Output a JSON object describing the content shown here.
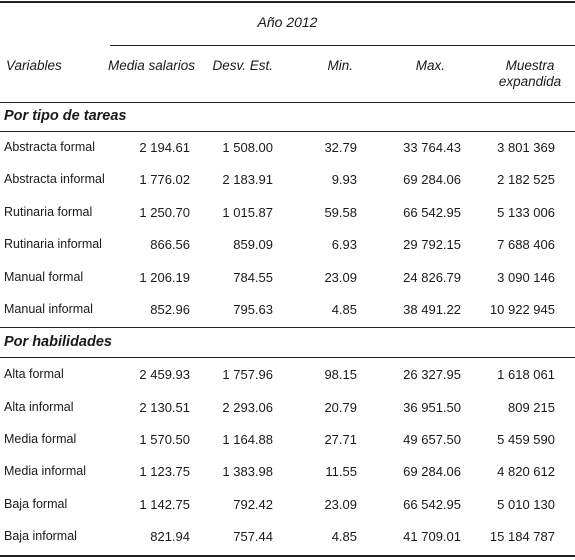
{
  "title": "Año 2012",
  "columns": {
    "variable": "Variables",
    "media": "Media salarios",
    "desv": "Desv. Est.",
    "min": "Min.",
    "max": "Max.",
    "muestra": "Muestra expandida"
  },
  "sections": [
    {
      "title": "Por tipo de tareas",
      "rows": [
        {
          "label": "Abstracta formal",
          "media": "2 194.61",
          "desv": "1 508.00",
          "min": "32.79",
          "max": "33 764.43",
          "muestra": "3 801 369"
        },
        {
          "label": "Abstracta informal",
          "media": "1 776.02",
          "desv": "2 183.91",
          "min": "9.93",
          "max": "69 284.06",
          "muestra": "2 182 525"
        },
        {
          "label": "Rutinaria formal",
          "media": "1 250.70",
          "desv": "1 015.87",
          "min": "59.58",
          "max": "66 542.95",
          "muestra": "5 133 006"
        },
        {
          "label": "Rutinaria informal",
          "media": "866.56",
          "desv": "859.09",
          "min": "6.93",
          "max": "29 792.15",
          "muestra": "7 688 406"
        },
        {
          "label": "Manual formal",
          "media": "1 206.19",
          "desv": "784.55",
          "min": "23.09",
          "max": "24 826.79",
          "muestra": "3 090 146"
        },
        {
          "label": "Manual informal",
          "media": "852.96",
          "desv": "795.63",
          "min": "4.85",
          "max": "38 491.22",
          "muestra": "10 922 945"
        }
      ]
    },
    {
      "title": "Por habilidades",
      "rows": [
        {
          "label": "Alta formal",
          "media": "2 459.93",
          "desv": "1 757.96",
          "min": "98.15",
          "max": "26 327.95",
          "muestra": "1 618 061"
        },
        {
          "label": "Alta informal",
          "media": "2 130.51",
          "desv": "2 293.06",
          "min": "20.79",
          "max": "36 951.50",
          "muestra": "809 215"
        },
        {
          "label": "Media formal",
          "media": "1 570.50",
          "desv": "1 164.88",
          "min": "27.71",
          "max": "49 657.50",
          "muestra": "5 459 590"
        },
        {
          "label": "Media informal",
          "media": "1 123.75",
          "desv": "1 383.98",
          "min": "11.55",
          "max": "69 284.06",
          "muestra": "4 820 612"
        },
        {
          "label": "Baja formal",
          "media": "1 142.75",
          "desv": "792.42",
          "min": "23.09",
          "max": "66 542.95",
          "muestra": "5 010 130"
        },
        {
          "label": "Baja informal",
          "media": "821.94",
          "desv": "757.44",
          "min": "4.85",
          "max": "41 709.01",
          "muestra": "15 184 787"
        }
      ]
    }
  ]
}
